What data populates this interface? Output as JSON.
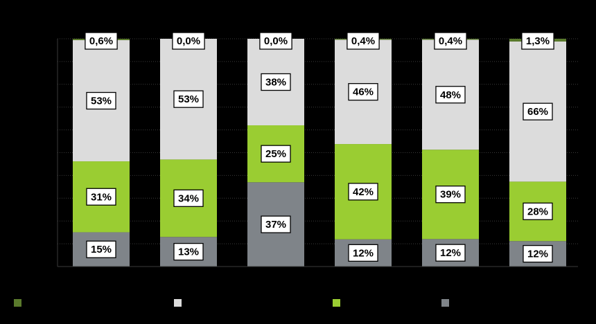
{
  "chart_data": {
    "type": "bar",
    "stacked": true,
    "normalized": true,
    "title": "",
    "xlabel": "",
    "ylabel": "",
    "ylim": [
      0,
      1
    ],
    "grid": "horizontal dotted",
    "legend": "bottom",
    "categories": [
      "",
      "",
      "",
      "",
      "",
      ""
    ],
    "series": [
      {
        "color": "#7f8489",
        "values": [
          15,
          13,
          37,
          12,
          12,
          12
        ],
        "labels": [
          "15%",
          "13%",
          "37%",
          "12%",
          "12%",
          "12%"
        ]
      },
      {
        "color": "#9acd32",
        "values": [
          31,
          34,
          25,
          42,
          39,
          28
        ],
        "labels": [
          "31%",
          "34%",
          "25%",
          "42%",
          "39%",
          "28%"
        ]
      },
      {
        "color": "#dcdcdc",
        "values": [
          53,
          53,
          38,
          46,
          48,
          66
        ],
        "labels": [
          "53%",
          "53%",
          "38%",
          "46%",
          "48%",
          "66%"
        ]
      },
      {
        "color": "#5a7a2c",
        "values": [
          0.6,
          0.0,
          0.0,
          0.4,
          0.4,
          1.3
        ],
        "labels": [
          "0,6%",
          "0,0%",
          "0,0%",
          "0,4%",
          "0,4%",
          "1,3%"
        ]
      }
    ],
    "legend_entries": [
      {
        "color": "#5a7a2c",
        "series_index": 3
      },
      {
        "color": "#dcdcdc",
        "series_index": 2
      },
      {
        "color": "#9acd32",
        "series_index": 1
      },
      {
        "color": "#7f8489",
        "series_index": 0
      }
    ]
  }
}
